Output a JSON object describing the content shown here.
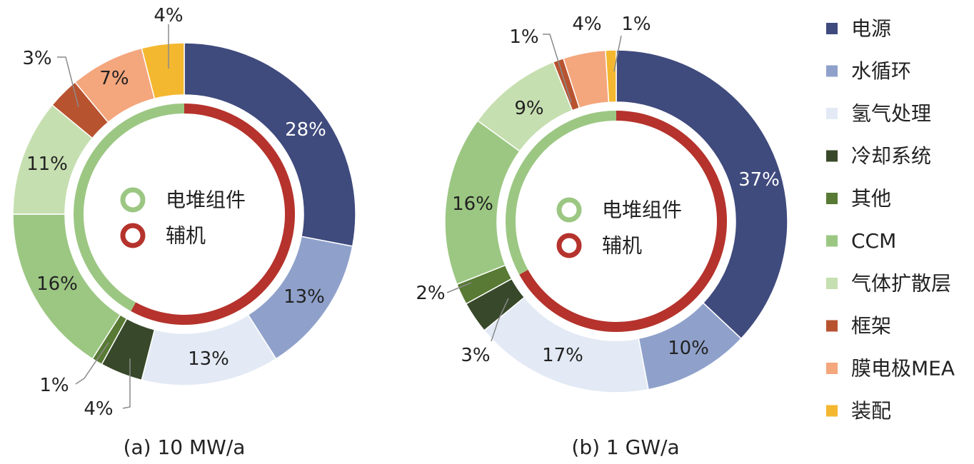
{
  "colors": {
    "电源": "#3f4a7d",
    "水循环": "#8fa1cb",
    "氢气处理": "#e3eaf5",
    "冷却系统": "#38482a",
    "其他": "#587a34",
    "CCM": "#9cc783",
    "气体扩散层": "#c6dfb0",
    "框架": "#b85330",
    "膜电极MEA": "#f4a67d",
    "装配": "#f4b730",
    "stack": "#9cc783",
    "bop": "#b5332c"
  },
  "legend": [
    "电源",
    "水循环",
    "氢气处理",
    "冷却系统",
    "其他",
    "CCM",
    "气体扩散层",
    "框架",
    "膜电极MEA",
    "装配"
  ],
  "center_legend": [
    "电堆组件",
    "辅机"
  ],
  "chart_data": [
    {
      "type": "pie",
      "caption": "(a) 10 MW/a",
      "categories": [
        "电源",
        "水循环",
        "氢气处理",
        "冷却系统",
        "其他",
        "CCM",
        "气体扩散层",
        "框架",
        "膜电极MEA",
        "装配"
      ],
      "values": [
        28,
        13,
        13,
        4,
        1,
        16,
        11,
        3,
        7,
        4
      ],
      "labels": [
        "28%",
        "13%",
        "13%",
        "4%",
        "1%",
        "16%",
        "11%",
        "3%",
        "7%",
        "4%"
      ],
      "inner_ring": {
        "categories": [
          "辅机",
          "电堆组件"
        ],
        "values": [
          58,
          42
        ]
      }
    },
    {
      "type": "pie",
      "caption": "(b) 1 GW/a",
      "categories": [
        "电源",
        "水循环",
        "氢气处理",
        "冷却系统",
        "其他",
        "CCM",
        "气体扩散层",
        "框架",
        "膜电极MEA",
        "装配"
      ],
      "values": [
        37,
        10,
        17,
        3,
        2,
        16,
        9,
        1,
        4,
        1
      ],
      "labels": [
        "37%",
        "10%",
        "17%",
        "3%",
        "2%",
        "16%",
        "9%",
        "1%",
        "4%",
        "1%"
      ],
      "inner_ring": {
        "categories": [
          "辅机",
          "电堆组件"
        ],
        "values": [
          67,
          33
        ]
      }
    }
  ]
}
